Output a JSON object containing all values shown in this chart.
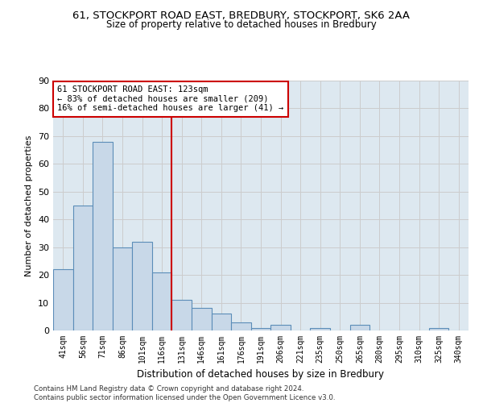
{
  "title1": "61, STOCKPORT ROAD EAST, BREDBURY, STOCKPORT, SK6 2AA",
  "title2": "Size of property relative to detached houses in Bredbury",
  "xlabel": "Distribution of detached houses by size in Bredbury",
  "ylabel": "Number of detached properties",
  "categories": [
    "41sqm",
    "56sqm",
    "71sqm",
    "86sqm",
    "101sqm",
    "116sqm",
    "131sqm",
    "146sqm",
    "161sqm",
    "176sqm",
    "191sqm",
    "206sqm",
    "221sqm",
    "235sqm",
    "250sqm",
    "265sqm",
    "280sqm",
    "295sqm",
    "310sqm",
    "325sqm",
    "340sqm"
  ],
  "values": [
    22,
    45,
    68,
    30,
    32,
    21,
    11,
    8,
    6,
    3,
    1,
    2,
    0,
    1,
    0,
    2,
    0,
    0,
    0,
    1,
    0
  ],
  "bar_color": "#c8d8e8",
  "bar_edge_color": "#5b8db8",
  "vline_x": 5.5,
  "vline_color": "#cc0000",
  "ylim": [
    0,
    90
  ],
  "yticks": [
    0,
    10,
    20,
    30,
    40,
    50,
    60,
    70,
    80,
    90
  ],
  "annotation_line1": "61 STOCKPORT ROAD EAST: 123sqm",
  "annotation_line2": "← 83% of detached houses are smaller (209)",
  "annotation_line3": "16% of semi-detached houses are larger (41) →",
  "annotation_box_color": "#cc0000",
  "grid_color": "#cccccc",
  "background_color": "#dde8f0",
  "footer1": "Contains HM Land Registry data © Crown copyright and database right 2024.",
  "footer2": "Contains public sector information licensed under the Open Government Licence v3.0."
}
